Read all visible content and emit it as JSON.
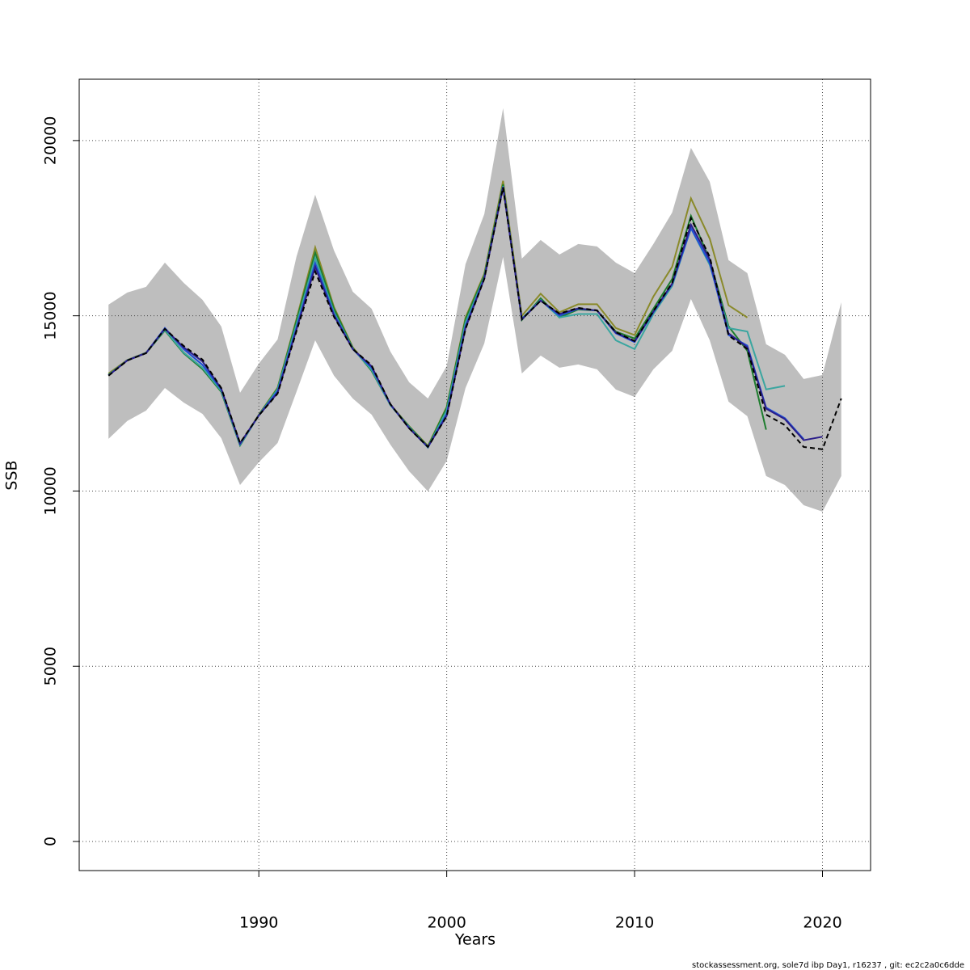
{
  "chart_data": {
    "type": "line",
    "xlabel": "Years",
    "ylabel": "SSB",
    "footer": "stockassessment.org, sole7d ibp Day1, r16237 , git: ec2c2a0c6dde",
    "x": [
      1982,
      1983,
      1984,
      1985,
      1986,
      1987,
      1988,
      1989,
      1990,
      1991,
      1992,
      1993,
      1994,
      1995,
      1996,
      1997,
      1998,
      1999,
      2000,
      2001,
      2002,
      2003,
      2004,
      2005,
      2006,
      2007,
      2008,
      2009,
      2010,
      2011,
      2012,
      2013,
      2014,
      2015,
      2016,
      2017,
      2018,
      2019,
      2020,
      2021
    ],
    "xlim": [
      1980.44,
      2022.56
    ],
    "ylim": [
      -830,
      21750
    ],
    "xticks": [
      1990,
      2000,
      2010,
      2020
    ],
    "yticks": [
      0,
      5000,
      10000,
      15000,
      20000
    ],
    "grid": true,
    "band": {
      "color": "#bebebe",
      "lower": [
        11490,
        12000,
        12295,
        12940,
        12525,
        12200,
        11510,
        10173,
        10820,
        11370,
        12825,
        14300,
        13290,
        12640,
        12180,
        11325,
        10565,
        9990,
        10865,
        12940,
        14210,
        16680,
        13356,
        13864,
        13518,
        13610,
        13472,
        12895,
        12687,
        13472,
        14000,
        15480,
        14300,
        12550,
        12134,
        10427,
        10173,
        9596,
        9412,
        10427
      ],
      "upper": [
        15317,
        15663,
        15825,
        16517,
        15940,
        15456,
        14694,
        12803,
        13633,
        14325,
        16680,
        18454,
        16863,
        15686,
        15202,
        13980,
        13103,
        12641,
        13564,
        16470,
        17900,
        20923,
        16632,
        17163,
        16747,
        17047,
        16978,
        16517,
        16217,
        17047,
        17947,
        19792,
        18824,
        16586,
        16217,
        14187,
        13887,
        13195,
        13310,
        15386
      ]
    },
    "series": [
      {
        "color": "#8a8a2a",
        "values": [
          13350,
          13740,
          13950,
          14600,
          13950,
          13500,
          12850,
          11330,
          12180,
          12950,
          14900,
          16950,
          15250,
          14100,
          13450,
          12470,
          11850,
          11290,
          12400,
          14950,
          16200,
          18850,
          15000,
          15630,
          15100,
          15330,
          15330,
          14650,
          14450,
          15550,
          16400,
          18350,
          17200,
          15300,
          14950,
          null,
          null,
          null,
          null,
          null
        ]
      },
      {
        "color": "#1e7d2e",
        "values": [
          13320,
          13730,
          13940,
          14580,
          13930,
          13480,
          12830,
          11300,
          12170,
          12930,
          14850,
          16800,
          15200,
          14080,
          13430,
          12460,
          11840,
          11270,
          12380,
          14900,
          16150,
          18750,
          14880,
          15500,
          14950,
          15180,
          15150,
          14550,
          14350,
          15200,
          16050,
          17850,
          16600,
          14700,
          14000,
          11750,
          null,
          null,
          null,
          null
        ]
      },
      {
        "color": "#3aa6a0",
        "values": [
          13310,
          13730,
          13940,
          14600,
          13950,
          13520,
          12860,
          11320,
          12160,
          12900,
          14750,
          16650,
          15100,
          14060,
          13460,
          12450,
          11820,
          11240,
          12300,
          14800,
          16100,
          18700,
          14920,
          15450,
          14950,
          15050,
          15050,
          14300,
          14050,
          15050,
          15850,
          17500,
          16450,
          14650,
          14550,
          12900,
          13000,
          null,
          null,
          null
        ]
      },
      {
        "color": "#1f4fd6",
        "values": [
          13300,
          13730,
          13940,
          14650,
          14050,
          13600,
          12900,
          11340,
          12160,
          12850,
          14650,
          16500,
          15050,
          14050,
          13520,
          12470,
          11800,
          11250,
          12200,
          14700,
          16080,
          18680,
          14900,
          15440,
          15000,
          15200,
          15150,
          14500,
          14250,
          15100,
          15900,
          17500,
          16500,
          14450,
          14150,
          12380,
          12080,
          11480,
          null,
          null
        ]
      },
      {
        "color": "#2b1e8a",
        "values": [
          13300,
          13725,
          13935,
          14630,
          14100,
          13700,
          12920,
          11360,
          12157,
          12800,
          14600,
          16400,
          15000,
          14050,
          13560,
          12480,
          11790,
          11257,
          12150,
          14650,
          16060,
          18670,
          14900,
          15430,
          15050,
          15210,
          15150,
          14520,
          14270,
          15120,
          15920,
          17600,
          16600,
          14500,
          14100,
          12350,
          12050,
          11450,
          11550,
          null
        ]
      },
      {
        "color": "#000000",
        "dashed": true,
        "values": [
          13290,
          13725,
          13933,
          14625,
          14140,
          13750,
          12940,
          11370,
          12157,
          12780,
          14555,
          16263,
          14970,
          14050,
          13587,
          12480,
          11790,
          11257,
          12134,
          14625,
          16055,
          18662,
          14900,
          15430,
          15063,
          15225,
          15155,
          14533,
          14280,
          15133,
          15940,
          17785,
          16680,
          14440,
          14050,
          12180,
          11880,
          11257,
          11190,
          12640
        ]
      }
    ]
  }
}
